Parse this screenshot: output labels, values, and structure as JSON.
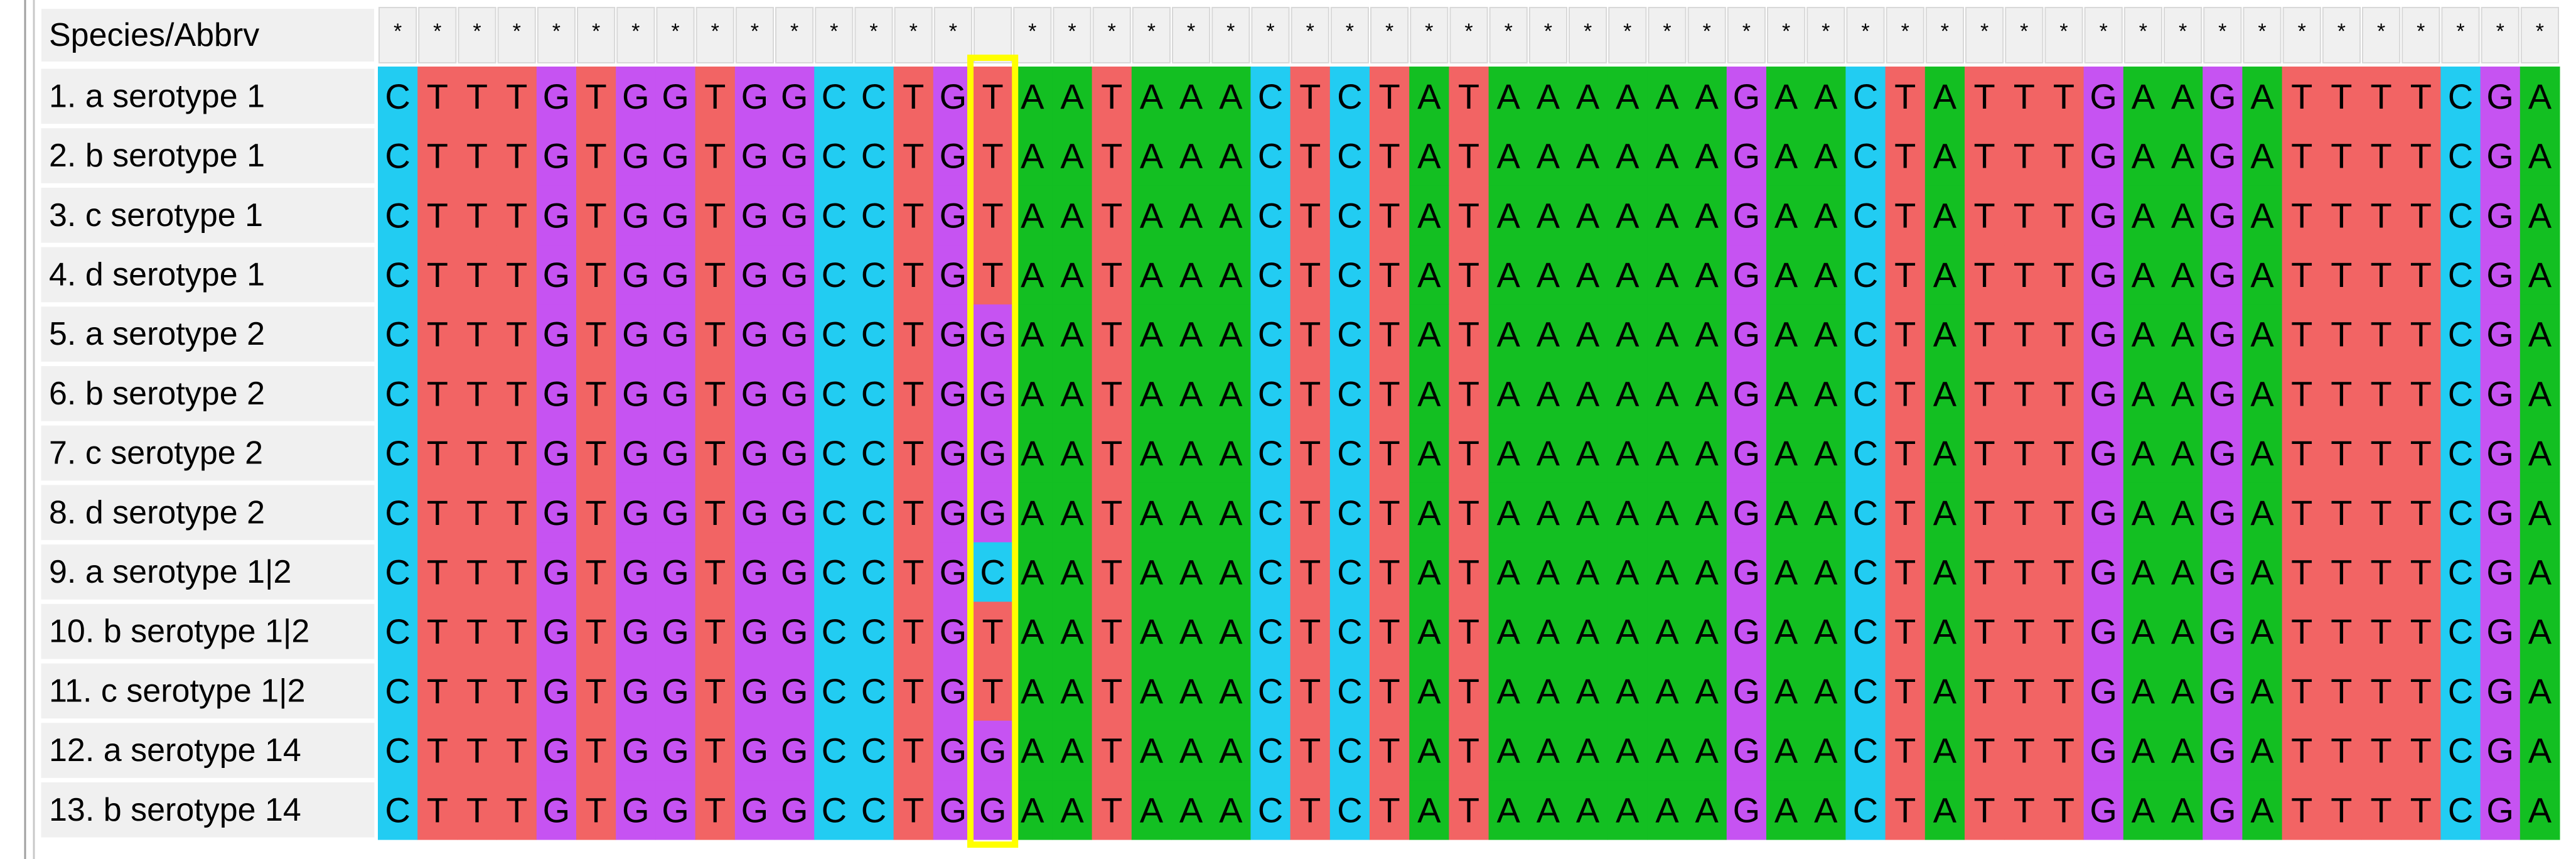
{
  "header": {
    "title": "Species/Abbrv"
  },
  "conservation": "*************** ***************************************",
  "colors": {
    "A": "#13bf22",
    "C": "#22ccf2",
    "G": "#c653f2",
    "T": "#f26464"
  },
  "rows": [
    {
      "name": "1. a serotype 1",
      "sequence": "CTTTGTGGTGGCCTGTAATAAACTCTATAAAAAAGAACTATTTGAAGATTTTCGA"
    },
    {
      "name": "2. b serotype 1",
      "sequence": "CTTTGTGGTGGCCTGTAATAAACTCTATAAAAAAGAACTATTTGAAGATTTTCGA"
    },
    {
      "name": "3. c serotype 1",
      "sequence": "CTTTGTGGTGGCCTGTAATAAACTCTATAAAAAAGAACTATTTGAAGATTTTCGA"
    },
    {
      "name": "4. d serotype 1",
      "sequence": "CTTTGTGGTGGCCTGTAATAAACTCTATAAAAAAGAACTATTTGAAGATTTTCGA"
    },
    {
      "name": "5. a serotype 2",
      "sequence": "CTTTGTGGTGGCCTGGAATAAACTCTATAAAAAAGAACTATTTGAAGATTTTCGA"
    },
    {
      "name": "6. b serotype 2",
      "sequence": "CTTTGTGGTGGCCTGGAATAAACTCTATAAAAAAGAACTATTTGAAGATTTTCGA"
    },
    {
      "name": "7. c serotype 2",
      "sequence": "CTTTGTGGTGGCCTGGAATAAACTCTATAAAAAAGAACTATTTGAAGATTTTCGA"
    },
    {
      "name": "8. d serotype 2",
      "sequence": "CTTTGTGGTGGCCTGGAATAAACTCTATAAAAAAGAACTATTTGAAGATTTTCGA"
    },
    {
      "name": "9. a serotype 1|2",
      "sequence": "CTTTGTGGTGGCCTGCAATAAACTCTATAAAAAAGAACTATTTGAAGATTTTCGA"
    },
    {
      "name": "10. b serotype 1|2",
      "sequence": "CTTTGTGGTGGCCTGTAATAAACTCTATAAAAAAGAACTATTTGAAGATTTTCGA"
    },
    {
      "name": "11. c serotype 1|2",
      "sequence": "CTTTGTGGTGGCCTGTAATAAACTCTATAAAAAAGAACTATTTGAAGATTTTCGA"
    },
    {
      "name": "12. a serotype 14",
      "sequence": "CTTTGTGGTGGCCTGGAATAAACTCTATAAAAAAGAACTATTTGAAGATTTTCGA"
    },
    {
      "name": "13. b serotype 14",
      "sequence": "CTTTGTGGTGGCCTGGAATAAACTCTATAAAAAAGAACTATTTGAAGATTTTCGA"
    }
  ]
}
